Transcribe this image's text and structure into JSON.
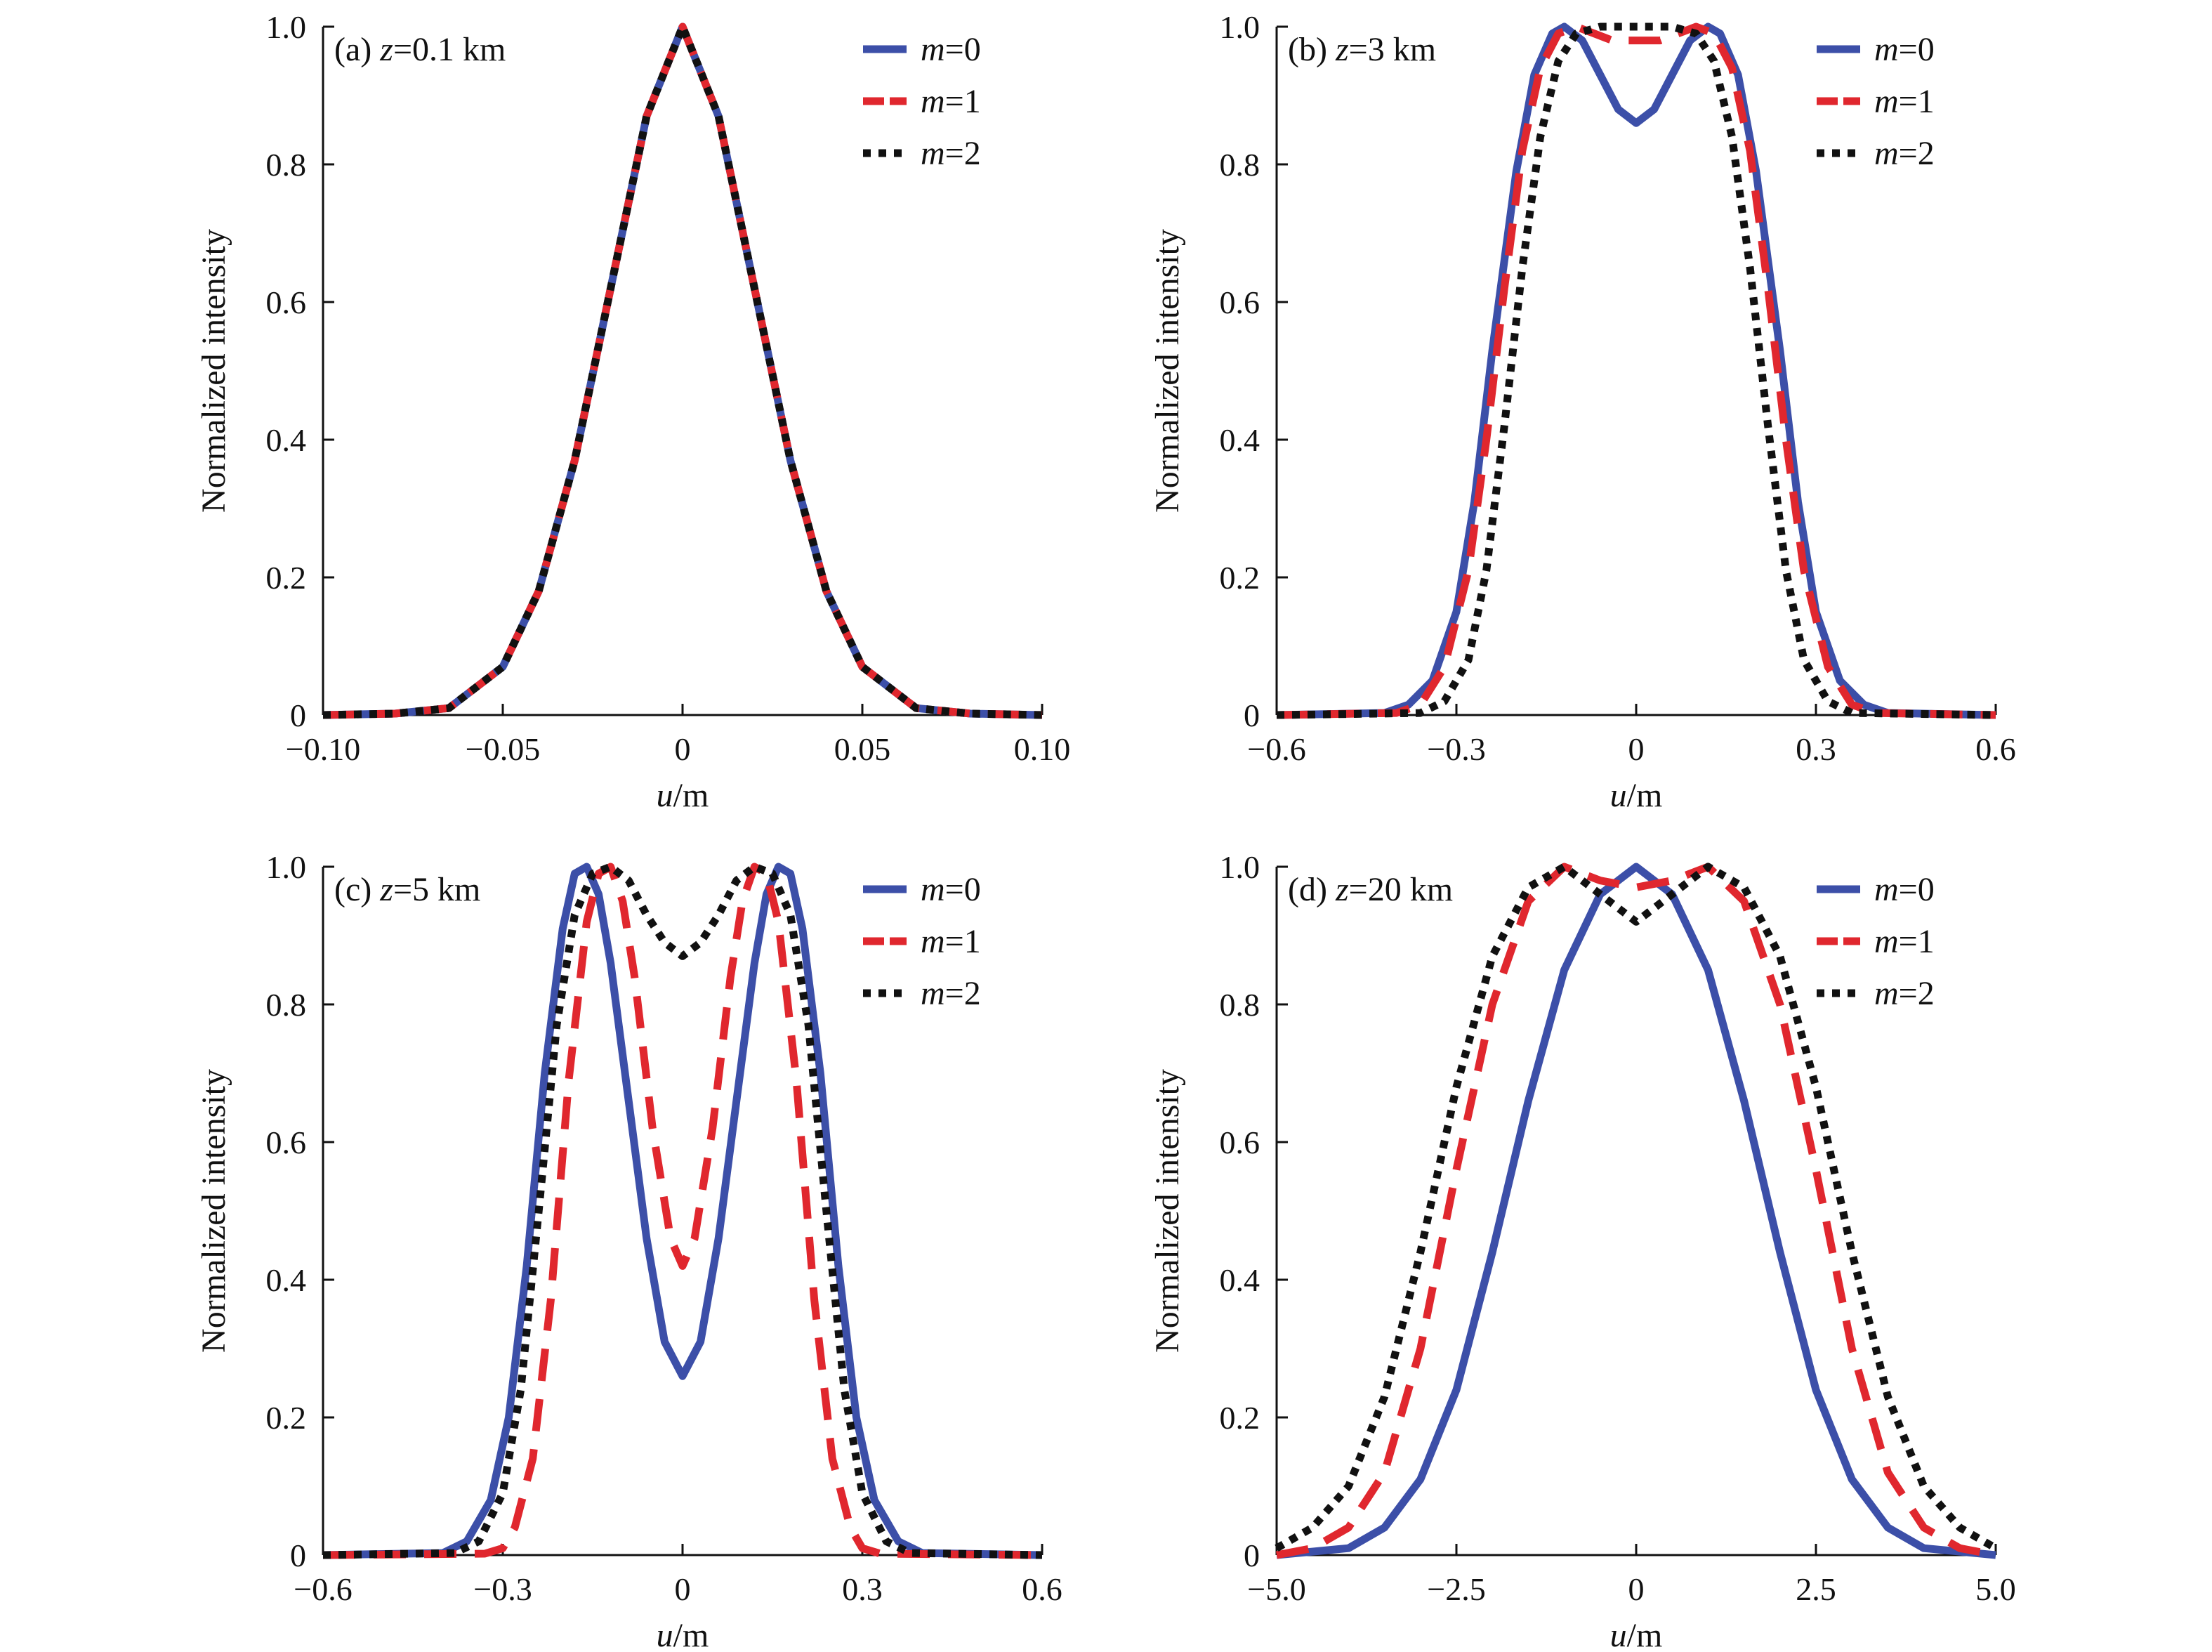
{
  "figure": {
    "legend_labels": [
      "m=0",
      "m=1",
      "m=2"
    ],
    "colors": {
      "m0": "#3c4fa8",
      "m1": "#e0272e",
      "m2": "#111111"
    }
  },
  "chart_data": [
    {
      "type": "line",
      "panel_label": "(a) z=0.1 km",
      "panel_prefix": "(a) ",
      "panel_var": "z",
      "panel_value": "=0.1 km",
      "xlabel_var": "u",
      "xlabel_unit": "/m",
      "ylabel": "Normalized intensity",
      "xlim": [
        -0.1,
        0.1
      ],
      "ylim": [
        0,
        1.0
      ],
      "xticks": [
        -0.1,
        -0.05,
        0,
        0.05,
        0.1
      ],
      "xtick_labels": [
        "−0.10",
        "−0.05",
        "0",
        "0.05",
        "0.10"
      ],
      "yticks": [
        0,
        0.2,
        0.4,
        0.6,
        0.8,
        1.0
      ],
      "ytick_labels": [
        "0",
        "0.2",
        "0.4",
        "0.6",
        "0.8",
        "1.0"
      ],
      "legend_position": "top-right",
      "series": [
        {
          "name": "m=0",
          "x": [
            -0.1,
            -0.08,
            -0.065,
            -0.05,
            -0.04,
            -0.03,
            -0.02,
            -0.01,
            0,
            0.01,
            0.02,
            0.03,
            0.04,
            0.05,
            0.065,
            0.08,
            0.1
          ],
          "y": [
            0,
            0.002,
            0.01,
            0.07,
            0.18,
            0.37,
            0.62,
            0.87,
            1.0,
            0.87,
            0.62,
            0.37,
            0.18,
            0.07,
            0.01,
            0.002,
            0
          ]
        },
        {
          "name": "m=1",
          "x": [
            -0.1,
            -0.08,
            -0.065,
            -0.05,
            -0.04,
            -0.03,
            -0.02,
            -0.01,
            0,
            0.01,
            0.02,
            0.03,
            0.04,
            0.05,
            0.065,
            0.08,
            0.1
          ],
          "y": [
            0,
            0.002,
            0.01,
            0.07,
            0.18,
            0.37,
            0.62,
            0.87,
            1.0,
            0.87,
            0.62,
            0.37,
            0.18,
            0.07,
            0.01,
            0.002,
            0
          ]
        },
        {
          "name": "m=2",
          "x": [
            -0.1,
            -0.08,
            -0.065,
            -0.05,
            -0.04,
            -0.03,
            -0.02,
            -0.01,
            0,
            0.01,
            0.02,
            0.03,
            0.04,
            0.05,
            0.065,
            0.08,
            0.1
          ],
          "y": [
            0,
            0.002,
            0.01,
            0.07,
            0.18,
            0.37,
            0.62,
            0.87,
            1.0,
            0.87,
            0.62,
            0.37,
            0.18,
            0.07,
            0.01,
            0.002,
            0
          ]
        }
      ]
    },
    {
      "type": "line",
      "panel_label": "(b) z=3 km",
      "panel_prefix": "(b) ",
      "panel_var": "z",
      "panel_value": "=3 km",
      "xlabel_var": "u",
      "xlabel_unit": "/m",
      "ylabel": "Normalized intensity",
      "xlim": [
        -0.6,
        0.6
      ],
      "ylim": [
        0,
        1.0
      ],
      "xticks": [
        -0.6,
        -0.3,
        0,
        0.3,
        0.6
      ],
      "xtick_labels": [
        "−0.6",
        "−0.3",
        "0",
        "0.3",
        "0.6"
      ],
      "yticks": [
        0,
        0.2,
        0.4,
        0.6,
        0.8,
        1.0
      ],
      "ytick_labels": [
        "0",
        "0.2",
        "0.4",
        "0.6",
        "0.8",
        "1.0"
      ],
      "legend_position": "top-right",
      "series": [
        {
          "name": "m=0",
          "x": [
            -0.6,
            -0.42,
            -0.38,
            -0.34,
            -0.3,
            -0.27,
            -0.24,
            -0.2,
            -0.17,
            -0.14,
            -0.12,
            -0.09,
            -0.06,
            -0.03,
            0,
            0.03,
            0.06,
            0.09,
            0.12,
            0.14,
            0.17,
            0.2,
            0.24,
            0.27,
            0.3,
            0.34,
            0.38,
            0.42,
            0.6
          ],
          "y": [
            0,
            0.003,
            0.015,
            0.05,
            0.15,
            0.31,
            0.53,
            0.79,
            0.93,
            0.99,
            1.0,
            0.98,
            0.93,
            0.88,
            0.86,
            0.88,
            0.93,
            0.98,
            1.0,
            0.99,
            0.93,
            0.79,
            0.53,
            0.31,
            0.15,
            0.05,
            0.015,
            0.003,
            0
          ]
        },
        {
          "name": "m=1",
          "x": [
            -0.6,
            -0.4,
            -0.36,
            -0.32,
            -0.28,
            -0.25,
            -0.22,
            -0.19,
            -0.16,
            -0.13,
            -0.1,
            -0.07,
            -0.04,
            0,
            0.04,
            0.07,
            0.1,
            0.13,
            0.16,
            0.19,
            0.22,
            0.25,
            0.28,
            0.32,
            0.36,
            0.4,
            0.6
          ],
          "y": [
            0,
            0.003,
            0.015,
            0.07,
            0.21,
            0.4,
            0.62,
            0.82,
            0.94,
            0.99,
            1.0,
            0.99,
            0.98,
            0.98,
            0.98,
            0.99,
            1.0,
            0.99,
            0.94,
            0.82,
            0.62,
            0.4,
            0.21,
            0.07,
            0.015,
            0.003,
            0
          ]
        },
        {
          "name": "m=2",
          "x": [
            -0.6,
            -0.36,
            -0.32,
            -0.28,
            -0.25,
            -0.22,
            -0.19,
            -0.16,
            -0.13,
            -0.1,
            -0.06,
            -0.03,
            0,
            0.03,
            0.06,
            0.1,
            0.13,
            0.16,
            0.19,
            0.22,
            0.25,
            0.28,
            0.32,
            0.36,
            0.6
          ],
          "y": [
            0,
            0.003,
            0.02,
            0.08,
            0.21,
            0.42,
            0.65,
            0.84,
            0.95,
            0.99,
            1.0,
            1.0,
            1.0,
            1.0,
            1.0,
            0.99,
            0.95,
            0.84,
            0.65,
            0.42,
            0.21,
            0.08,
            0.02,
            0.003,
            0
          ]
        }
      ]
    },
    {
      "type": "line",
      "panel_label": "(c) z=5 km",
      "panel_prefix": "(c) ",
      "panel_var": "z",
      "panel_value": "=5 km",
      "xlabel_var": "u",
      "xlabel_unit": "/m",
      "ylabel": "Normalized intensity",
      "xlim": [
        -0.6,
        0.6
      ],
      "ylim": [
        0,
        1.0
      ],
      "xticks": [
        -0.6,
        -0.3,
        0,
        0.3,
        0.6
      ],
      "xtick_labels": [
        "−0.6",
        "−0.3",
        "0",
        "0.3",
        "0.6"
      ],
      "yticks": [
        0,
        0.2,
        0.4,
        0.6,
        0.8,
        1.0
      ],
      "ytick_labels": [
        "0",
        "0.2",
        "0.4",
        "0.6",
        "0.8",
        "1.0"
      ],
      "legend_position": "top-right",
      "series": [
        {
          "name": "m=0",
          "x": [
            -0.6,
            -0.4,
            -0.36,
            -0.32,
            -0.29,
            -0.26,
            -0.23,
            -0.2,
            -0.18,
            -0.16,
            -0.14,
            -0.12,
            -0.09,
            -0.06,
            -0.03,
            0,
            0.03,
            0.06,
            0.09,
            0.12,
            0.14,
            0.16,
            0.18,
            0.2,
            0.23,
            0.26,
            0.29,
            0.32,
            0.36,
            0.4,
            0.6
          ],
          "y": [
            0,
            0.003,
            0.02,
            0.08,
            0.2,
            0.42,
            0.7,
            0.91,
            0.99,
            1.0,
            0.96,
            0.86,
            0.66,
            0.46,
            0.31,
            0.26,
            0.31,
            0.46,
            0.66,
            0.86,
            0.96,
            1.0,
            0.99,
            0.91,
            0.7,
            0.42,
            0.2,
            0.08,
            0.02,
            0.003,
            0
          ]
        },
        {
          "name": "m=1",
          "x": [
            -0.6,
            -0.33,
            -0.3,
            -0.28,
            -0.25,
            -0.22,
            -0.19,
            -0.16,
            -0.14,
            -0.12,
            -0.1,
            -0.08,
            -0.05,
            -0.02,
            0,
            0.02,
            0.05,
            0.08,
            0.1,
            0.12,
            0.14,
            0.16,
            0.19,
            0.22,
            0.25,
            0.28,
            0.3,
            0.33,
            0.6
          ],
          "y": [
            0,
            0.002,
            0.01,
            0.04,
            0.14,
            0.37,
            0.69,
            0.92,
            0.99,
            1.0,
            0.95,
            0.84,
            0.62,
            0.46,
            0.42,
            0.46,
            0.62,
            0.84,
            0.95,
            1.0,
            0.99,
            0.92,
            0.69,
            0.37,
            0.14,
            0.04,
            0.01,
            0.002,
            0
          ]
        },
        {
          "name": "m=2",
          "x": [
            -0.6,
            -0.38,
            -0.34,
            -0.3,
            -0.27,
            -0.24,
            -0.21,
            -0.18,
            -0.15,
            -0.12,
            -0.09,
            -0.06,
            -0.03,
            0,
            0.03,
            0.06,
            0.09,
            0.12,
            0.15,
            0.18,
            0.21,
            0.24,
            0.27,
            0.3,
            0.34,
            0.38,
            0.6
          ],
          "y": [
            0,
            0.003,
            0.02,
            0.09,
            0.24,
            0.5,
            0.77,
            0.93,
            0.99,
            1.0,
            0.98,
            0.93,
            0.89,
            0.87,
            0.89,
            0.93,
            0.98,
            1.0,
            0.99,
            0.93,
            0.77,
            0.5,
            0.24,
            0.09,
            0.02,
            0.003,
            0
          ]
        }
      ]
    },
    {
      "type": "line",
      "panel_label": "(d) z=20 km",
      "panel_prefix": "(d) ",
      "panel_var": "z",
      "panel_value": "=20 km",
      "xlabel_var": "u",
      "xlabel_unit": "/m",
      "ylabel": "Normalized intensity",
      "xlim": [
        -5.0,
        5.0
      ],
      "ylim": [
        0,
        1.0
      ],
      "xticks": [
        -5.0,
        -2.5,
        0,
        2.5,
        5.0
      ],
      "xtick_labels": [
        "−5.0",
        "−2.5",
        "0",
        "2.5",
        "5.0"
      ],
      "yticks": [
        0,
        0.2,
        0.4,
        0.6,
        0.8,
        1.0
      ],
      "ytick_labels": [
        "0",
        "0.2",
        "0.4",
        "0.6",
        "0.8",
        "1.0"
      ],
      "legend_position": "top-right",
      "series": [
        {
          "name": "m=0",
          "x": [
            -5.0,
            -4.0,
            -3.5,
            -3.0,
            -2.5,
            -2.0,
            -1.5,
            -1.0,
            -0.5,
            0,
            0.5,
            1.0,
            1.5,
            2.0,
            2.5,
            3.0,
            3.5,
            4.0,
            5.0
          ],
          "y": [
            0.0,
            0.01,
            0.04,
            0.11,
            0.24,
            0.44,
            0.66,
            0.85,
            0.96,
            1.0,
            0.96,
            0.85,
            0.66,
            0.44,
            0.24,
            0.11,
            0.04,
            0.01,
            0.0
          ]
        },
        {
          "name": "m=1",
          "x": [
            -5.0,
            -4.5,
            -4.0,
            -3.5,
            -3.0,
            -2.5,
            -2.0,
            -1.5,
            -1.0,
            -0.5,
            0,
            0.5,
            1.0,
            1.5,
            2.0,
            2.5,
            3.0,
            3.5,
            4.0,
            4.5,
            5.0
          ],
          "y": [
            0.0,
            0.01,
            0.04,
            0.12,
            0.3,
            0.56,
            0.8,
            0.95,
            1.0,
            0.98,
            0.97,
            0.98,
            1.0,
            0.95,
            0.8,
            0.56,
            0.3,
            0.12,
            0.04,
            0.01,
            0.0
          ]
        },
        {
          "name": "m=2",
          "x": [
            -5.0,
            -4.5,
            -4.0,
            -3.5,
            -3.0,
            -2.5,
            -2.0,
            -1.5,
            -1.0,
            -0.5,
            0,
            0.5,
            1.0,
            1.5,
            2.0,
            2.5,
            3.0,
            3.5,
            4.0,
            4.5,
            5.0
          ],
          "y": [
            0.01,
            0.04,
            0.1,
            0.23,
            0.44,
            0.68,
            0.87,
            0.97,
            1.0,
            0.96,
            0.92,
            0.96,
            1.0,
            0.97,
            0.87,
            0.68,
            0.44,
            0.23,
            0.1,
            0.04,
            0.01
          ]
        }
      ]
    }
  ]
}
